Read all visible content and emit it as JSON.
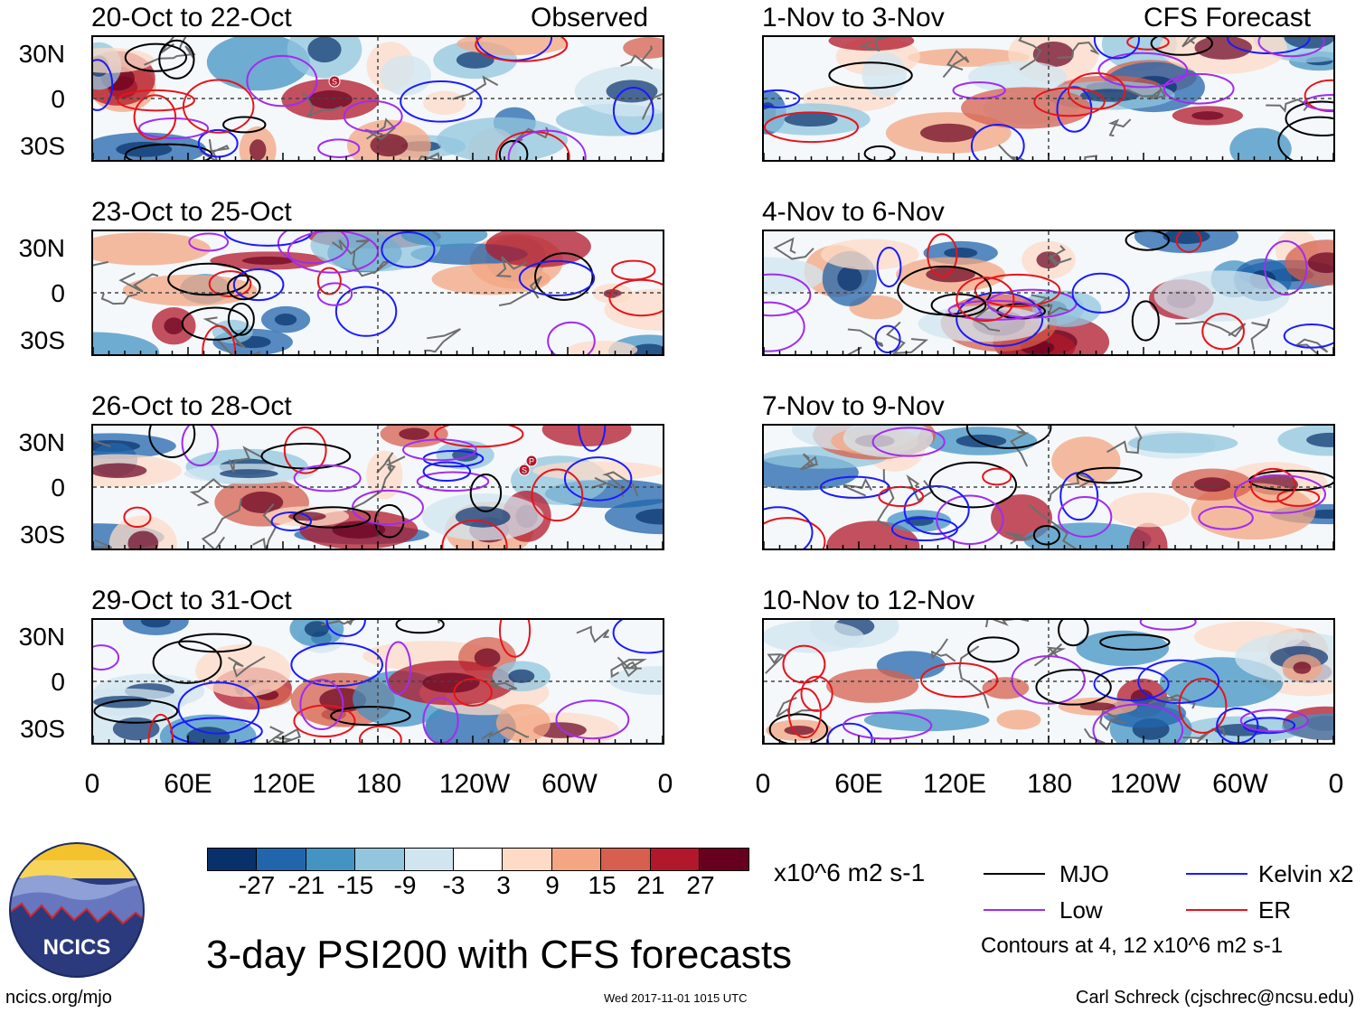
{
  "columns": {
    "left": {
      "label": "Observed",
      "panels": [
        "20-Oct to 22-Oct",
        "23-Oct to 25-Oct",
        "26-Oct to 28-Oct",
        "29-Oct to 31-Oct"
      ]
    },
    "right": {
      "label": "CFS Forecast",
      "panels": [
        "1-Nov to 3-Nov",
        "4-Nov to 6-Nov",
        "7-Nov to 9-Nov",
        "10-Nov to 12-Nov"
      ]
    }
  },
  "axes": {
    "y_labels": [
      "30N",
      "0",
      "30S"
    ],
    "x_labels": [
      "0",
      "60E",
      "120E",
      "180",
      "120W",
      "60W",
      "0"
    ]
  },
  "colorbar": {
    "ticks": [
      "-27",
      "-21",
      "-15",
      "-9",
      "-3",
      "3",
      "9",
      "15",
      "21",
      "27"
    ],
    "units": "x10^6 m2 s-1",
    "colors": [
      "#08306b",
      "#2166ac",
      "#4393c3",
      "#92c5de",
      "#d1e5f0",
      "#ffffff",
      "#fddbc7",
      "#f4a582",
      "#d6604d",
      "#b2182b",
      "#67001f"
    ]
  },
  "legend": {
    "items": [
      {
        "label": "MJO",
        "color": "#000000"
      },
      {
        "label": "Kelvin x2",
        "color": "#1a1aff"
      },
      {
        "label": "Low",
        "color": "#a02cf0"
      },
      {
        "label": "ER",
        "color": "#e8141a"
      }
    ],
    "contours_note": "Contours at 4, 12 x10^6 m2 s-1"
  },
  "footer": {
    "logo_text": "NCICS",
    "main_title": "3-day PSI200 with CFS forecasts",
    "site": "ncics.org/mjo",
    "timestamp": "Wed 2017-11-01 1015 UTC",
    "credit": "Carl Schreck (cjschrec@ncsu.edu)"
  },
  "storm_markers": [
    "S",
    "P"
  ]
}
